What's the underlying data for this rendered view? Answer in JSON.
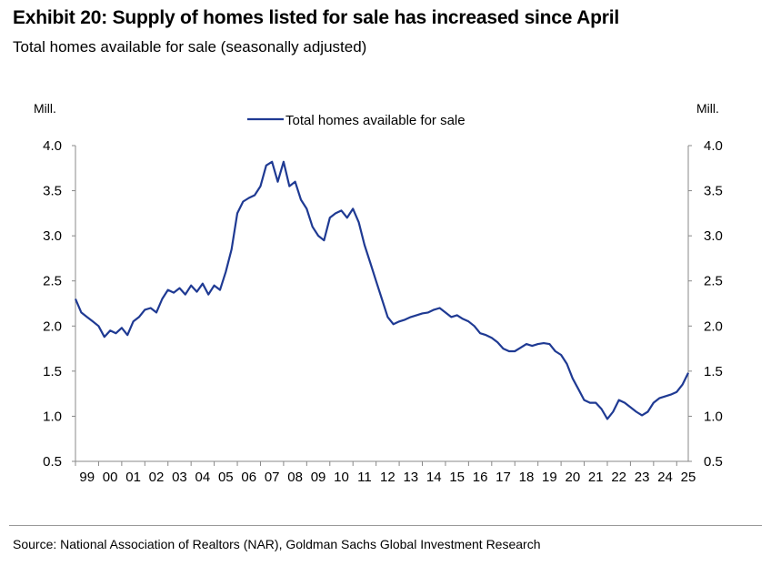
{
  "header": {
    "title": "Exhibit 20: Supply of homes listed for sale has increased since April",
    "subtitle": "Total homes available for sale (seasonally adjusted)"
  },
  "footer": {
    "source": "Source: National Association of Realtors (NAR), Goldman Sachs Global Investment Research"
  },
  "colors": {
    "series": "#1f3a93",
    "axis": "#888888"
  },
  "chart_data": {
    "type": "line",
    "left_unit": "Mill.",
    "right_unit": "Mill.",
    "ylim": [
      0.5,
      4.0
    ],
    "xlim": [
      1999.0,
      2025.5
    ],
    "yticks": [
      "0.5",
      "1.0",
      "1.5",
      "2.0",
      "2.5",
      "3.0",
      "3.5",
      "4.0"
    ],
    "xticks": [
      "99",
      "00",
      "01",
      "02",
      "03",
      "04",
      "05",
      "06",
      "07",
      "08",
      "09",
      "10",
      "11",
      "12",
      "13",
      "14",
      "15",
      "16",
      "17",
      "18",
      "19",
      "20",
      "21",
      "22",
      "23",
      "24",
      "25"
    ],
    "grid": false,
    "legend_position": "top-center",
    "series": [
      {
        "name": "Total homes available for sale",
        "x": [
          1999.0,
          1999.25,
          1999.5,
          1999.75,
          2000.0,
          2000.25,
          2000.5,
          2000.75,
          2001.0,
          2001.25,
          2001.5,
          2001.75,
          2002.0,
          2002.25,
          2002.5,
          2002.75,
          2003.0,
          2003.25,
          2003.5,
          2003.75,
          2004.0,
          2004.25,
          2004.5,
          2004.75,
          2005.0,
          2005.25,
          2005.5,
          2005.75,
          2006.0,
          2006.25,
          2006.5,
          2006.75,
          2007.0,
          2007.25,
          2007.5,
          2007.75,
          2008.0,
          2008.25,
          2008.5,
          2008.75,
          2009.0,
          2009.25,
          2009.5,
          2009.75,
          2010.0,
          2010.25,
          2010.5,
          2010.75,
          2011.0,
          2011.25,
          2011.5,
          2011.75,
          2012.0,
          2012.25,
          2012.5,
          2012.75,
          2013.0,
          2013.25,
          2013.5,
          2013.75,
          2014.0,
          2014.25,
          2014.5,
          2014.75,
          2015.0,
          2015.25,
          2015.5,
          2015.75,
          2016.0,
          2016.25,
          2016.5,
          2016.75,
          2017.0,
          2017.25,
          2017.5,
          2017.75,
          2018.0,
          2018.25,
          2018.5,
          2018.75,
          2019.0,
          2019.25,
          2019.5,
          2019.75,
          2020.0,
          2020.25,
          2020.5,
          2020.75,
          2021.0,
          2021.25,
          2021.5,
          2021.75,
          2022.0,
          2022.25,
          2022.5,
          2022.75,
          2023.0,
          2023.25,
          2023.5,
          2023.75,
          2024.0,
          2024.25,
          2024.5,
          2024.75,
          2025.0,
          2025.25,
          2025.5
        ],
        "values": [
          2.3,
          2.15,
          2.1,
          2.05,
          2.0,
          1.88,
          1.95,
          1.92,
          1.98,
          1.9,
          2.05,
          2.1,
          2.18,
          2.2,
          2.15,
          2.3,
          2.4,
          2.37,
          2.42,
          2.35,
          2.45,
          2.38,
          2.47,
          2.35,
          2.45,
          2.4,
          2.6,
          2.85,
          3.25,
          3.38,
          3.42,
          3.45,
          3.55,
          3.78,
          3.82,
          3.6,
          3.82,
          3.55,
          3.6,
          3.4,
          3.3,
          3.1,
          3.0,
          2.95,
          3.2,
          3.25,
          3.28,
          3.2,
          3.3,
          3.15,
          2.9,
          2.7,
          2.5,
          2.3,
          2.1,
          2.02,
          2.05,
          2.07,
          2.1,
          2.12,
          2.14,
          2.15,
          2.18,
          2.2,
          2.15,
          2.1,
          2.12,
          2.08,
          2.05,
          2.0,
          1.92,
          1.9,
          1.87,
          1.82,
          1.75,
          1.72,
          1.72,
          1.76,
          1.8,
          1.78,
          1.8,
          1.81,
          1.8,
          1.72,
          1.68,
          1.58,
          1.42,
          1.3,
          1.18,
          1.15,
          1.15,
          1.08,
          0.97,
          1.05,
          1.18,
          1.15,
          1.1,
          1.05,
          1.01,
          1.05,
          1.15,
          1.2,
          1.22,
          1.24,
          1.27,
          1.35,
          1.48
        ]
      }
    ]
  }
}
